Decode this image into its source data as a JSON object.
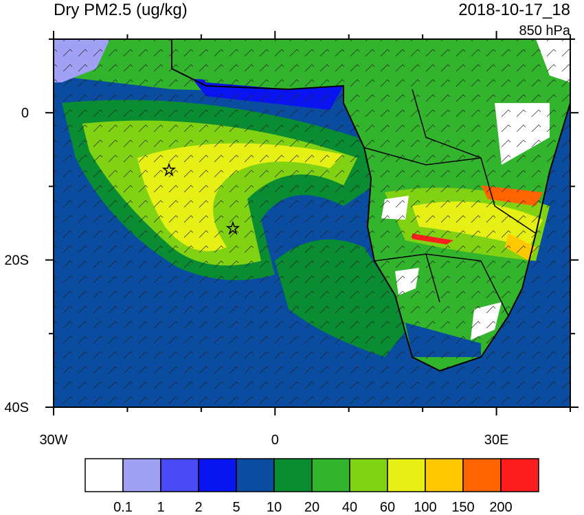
{
  "title": "Dry PM2.5 (ug/kg)",
  "time": "2018-10-17_18",
  "level": "850 hPa",
  "lat_labels": [
    "0",
    "20S",
    "40S"
  ],
  "lon_labels": [
    "30W",
    "0",
    "30E"
  ],
  "colorbar": {
    "colors": [
      "#ffffff",
      "#a0a0f5",
      "#4b4bf5",
      "#0a14f0",
      "#0a4ca0",
      "#0a8c32",
      "#32b42d",
      "#82d214",
      "#e6f014",
      "#ffc800",
      "#ff6400",
      "#ff1e1e"
    ],
    "labels": [
      "0.1",
      "1",
      "2",
      "5",
      "10",
      "20",
      "40",
      "60",
      "100",
      "150",
      "200"
    ]
  }
}
